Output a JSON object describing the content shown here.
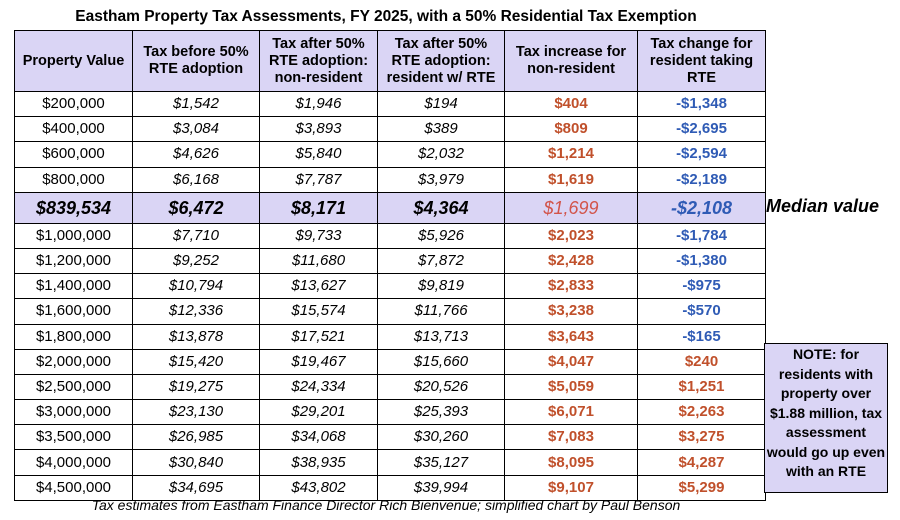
{
  "title": "Eastham Property Tax Assessments, FY 2025, with a 50% Residential Tax Exemption",
  "headers": [
    "Property Value",
    "Tax before 50% RTE adoption",
    "Tax after 50% RTE adoption: non-resident",
    "Tax after 50% RTE adoption: resident w/ RTE",
    "Tax increase for non-resident",
    "Tax change for resident taking RTE"
  ],
  "rows": [
    {
      "value": "$200,000",
      "before": "$1,542",
      "nonres": "$1,946",
      "res": "$194",
      "increase": "$404",
      "change": "-$1,348",
      "change_sign": "neg"
    },
    {
      "value": "$400,000",
      "before": "$3,084",
      "nonres": "$3,893",
      "res": "$389",
      "increase": "$809",
      "change": "-$2,695",
      "change_sign": "neg"
    },
    {
      "value": "$600,000",
      "before": "$4,626",
      "nonres": "$5,840",
      "res": "$2,032",
      "increase": "$1,214",
      "change": "-$2,594",
      "change_sign": "neg"
    },
    {
      "value": "$800,000",
      "before": "$6,168",
      "nonres": "$7,787",
      "res": "$3,979",
      "increase": "$1,619",
      "change": "-$2,189",
      "change_sign": "neg"
    },
    {
      "value": "$839,534",
      "before": "$6,472",
      "nonres": "$8,171",
      "res": "$4,364",
      "increase": "$1,699",
      "change": "-$2,108",
      "change_sign": "neg",
      "median": true
    },
    {
      "value": "$1,000,000",
      "before": "$7,710",
      "nonres": "$9,733",
      "res": "$5,926",
      "increase": "$2,023",
      "change": "-$1,784",
      "change_sign": "neg"
    },
    {
      "value": "$1,200,000",
      "before": "$9,252",
      "nonres": "$11,680",
      "res": "$7,872",
      "increase": "$2,428",
      "change": "-$1,380",
      "change_sign": "neg"
    },
    {
      "value": "$1,400,000",
      "before": "$10,794",
      "nonres": "$13,627",
      "res": "$9,819",
      "increase": "$2,833",
      "change": "-$975",
      "change_sign": "neg"
    },
    {
      "value": "$1,600,000",
      "before": "$12,336",
      "nonres": "$15,574",
      "res": "$11,766",
      "increase": "$3,238",
      "change": "-$570",
      "change_sign": "neg"
    },
    {
      "value": "$1,800,000",
      "before": "$13,878",
      "nonres": "$17,521",
      "res": "$13,713",
      "increase": "$3,643",
      "change": "-$165",
      "change_sign": "neg"
    },
    {
      "value": "$2,000,000",
      "before": "$15,420",
      "nonres": "$19,467",
      "res": "$15,660",
      "increase": "$4,047",
      "change": "$240",
      "change_sign": "pos"
    },
    {
      "value": "$2,500,000",
      "before": "$19,275",
      "nonres": "$24,334",
      "res": "$20,526",
      "increase": "$5,059",
      "change": "$1,251",
      "change_sign": "pos"
    },
    {
      "value": "$3,000,000",
      "before": "$23,130",
      "nonres": "$29,201",
      "res": "$25,393",
      "increase": "$6,071",
      "change": "$2,263",
      "change_sign": "pos"
    },
    {
      "value": "$3,500,000",
      "before": "$26,985",
      "nonres": "$34,068",
      "res": "$30,260",
      "increase": "$7,083",
      "change": "$3,275",
      "change_sign": "pos"
    },
    {
      "value": "$4,000,000",
      "before": "$30,840",
      "nonres": "$38,935",
      "res": "$35,127",
      "increase": "$8,095",
      "change": "$4,287",
      "change_sign": "pos"
    },
    {
      "value": "$4,500,000",
      "before": "$34,695",
      "nonres": "$43,802",
      "res": "$39,994",
      "increase": "$9,107",
      "change": "$5,299",
      "change_sign": "pos"
    }
  ],
  "median_label": "Median value",
  "note": "NOTE: for residents with property over $1.88 million, tax assessment would go up even with an RTE",
  "caption": "Tax estimates from Eastham Finance Director Rich Bienvenue; simplified chart by Paul Benson",
  "colors": {
    "header_bg": "#dad5f5",
    "increase": "#c0502b",
    "decrease": "#2f5bb5"
  }
}
